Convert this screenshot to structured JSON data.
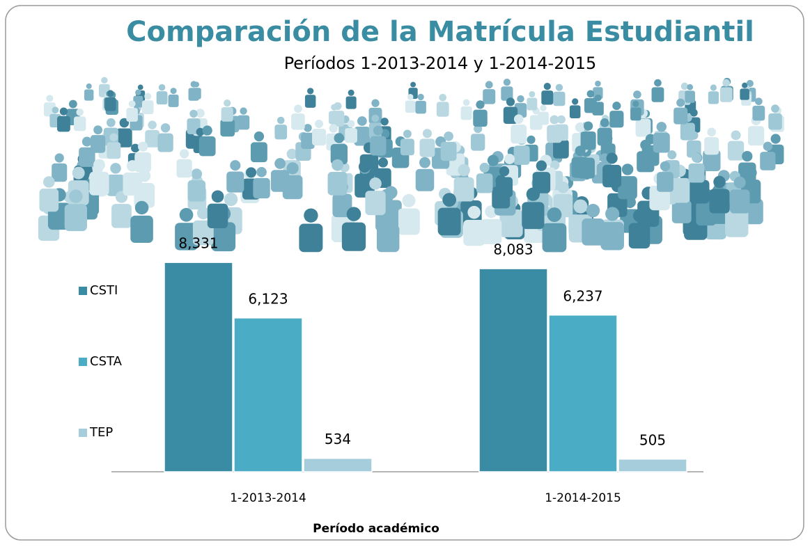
{
  "chart_data": {
    "type": "bar",
    "title": "Comparación de la Matrícula Estudiantil",
    "subtitle": "Períodos 1-2013-2014 y 1-2014-2015",
    "x_label": "Período académico",
    "categories": [
      "1-2013-2014",
      "1-2014-2015"
    ],
    "series": [
      {
        "name": "CSTI",
        "color": "#3a8ba4",
        "values": [
          8331,
          8083
        ],
        "value_labels": [
          "8,331",
          "8,083"
        ]
      },
      {
        "name": "CSTA",
        "color": "#4bacc6",
        "values": [
          6123,
          6237
        ],
        "value_labels": [
          "6,123",
          "6,237"
        ]
      },
      {
        "name": "TEP",
        "color": "#a5cddb",
        "values": [
          534,
          505
        ],
        "value_labels": [
          "534",
          "505"
        ]
      }
    ],
    "ylim": [
      0,
      9000
    ],
    "legend": "left"
  }
}
